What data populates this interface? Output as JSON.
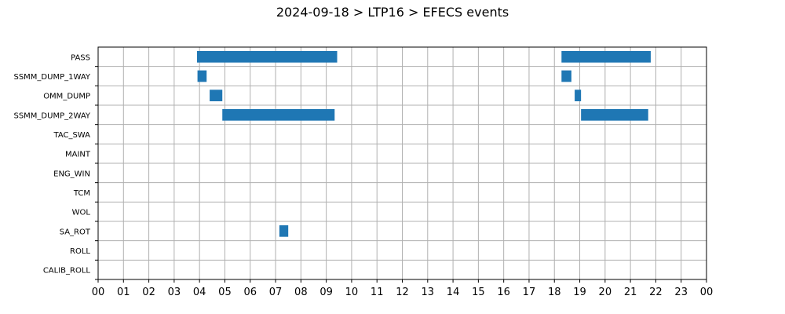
{
  "chart_data": {
    "type": "bar",
    "orientation": "horizontal-timeline",
    "title": "2024-09-18 > LTP16 > EFECS events",
    "xlabel": "",
    "ylabel": "",
    "x_unit": "hour",
    "xlim": [
      0,
      24
    ],
    "x_tick_labels": [
      "00",
      "01",
      "02",
      "03",
      "04",
      "05",
      "06",
      "07",
      "08",
      "09",
      "10",
      "11",
      "12",
      "13",
      "14",
      "15",
      "16",
      "17",
      "18",
      "19",
      "20",
      "21",
      "22",
      "23",
      "00"
    ],
    "categories": [
      "PASS",
      "SSMM_DUMP_1WAY",
      "OMM_DUMP",
      "SSMM_DUMP_2WAY",
      "TAC_SWA",
      "MAINT",
      "ENG_WIN",
      "TCM",
      "WOL",
      "SA_ROT",
      "ROLL",
      "CALIB_ROLL"
    ],
    "events": [
      {
        "category": "PASS",
        "start": 3.9,
        "end": 9.43
      },
      {
        "category": "PASS",
        "start": 18.28,
        "end": 21.8
      },
      {
        "category": "SSMM_DUMP_1WAY",
        "start": 3.92,
        "end": 4.28
      },
      {
        "category": "SSMM_DUMP_1WAY",
        "start": 18.28,
        "end": 18.67
      },
      {
        "category": "OMM_DUMP",
        "start": 4.4,
        "end": 4.9
      },
      {
        "category": "OMM_DUMP",
        "start": 18.8,
        "end": 19.05
      },
      {
        "category": "SSMM_DUMP_2WAY",
        "start": 4.9,
        "end": 9.33
      },
      {
        "category": "SSMM_DUMP_2WAY",
        "start": 19.05,
        "end": 21.7
      },
      {
        "category": "SA_ROT",
        "start": 7.15,
        "end": 7.5
      }
    ],
    "grid": true,
    "colors": {
      "bar": "#1f77b4",
      "grid": "#b0b0b0",
      "axis": "#000000"
    }
  }
}
